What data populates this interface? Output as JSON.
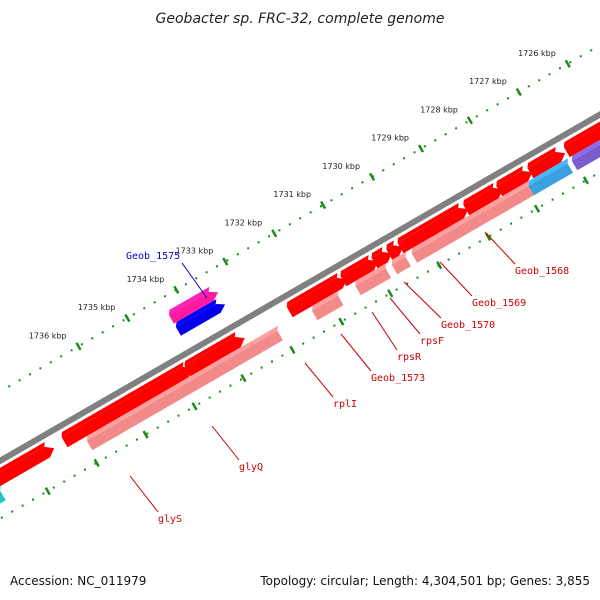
{
  "title": "Geobacter sp. FRC-32, complete genome",
  "footer": {
    "accession": "Accession: NC_011979",
    "summary": "Topology: circular; Length: 4,304,501 bp; Genes: 3,855"
  },
  "colors": {
    "forward_gene": "#ff0000",
    "reverse_gene": "#f28a8a",
    "highlight_gene": "#ff1aa0",
    "highlight_reverse": "#0000ee",
    "cyan_track": "#1fc8c8",
    "blue_track": "#3aa0e0",
    "purple_track": "#7a5ccf",
    "backbone": "#808080",
    "ruler_dots": "#1a8a1a",
    "red_label": "#cc0000",
    "blue_label": "#0000cc"
  },
  "chart_data": {
    "type": "genome-map",
    "ticks": [
      "1726 kbp",
      "1727 kbp",
      "1728 kbp",
      "1729 kbp",
      "1730 kbp",
      "1731 kbp",
      "1732 kbp",
      "1733 kbp",
      "1734 kbp",
      "1735 kbp",
      "1736 kbp"
    ],
    "gene_labels": [
      {
        "name": "Geob_1568",
        "color": "red"
      },
      {
        "name": "Geob_1569",
        "color": "red"
      },
      {
        "name": "Geob_1570",
        "color": "red"
      },
      {
        "name": "rpsF",
        "color": "red"
      },
      {
        "name": "rpsR",
        "color": "red"
      },
      {
        "name": "Geob_1573",
        "color": "red"
      },
      {
        "name": "rplI",
        "color": "red"
      },
      {
        "name": "glyQ",
        "color": "red"
      },
      {
        "name": "glyS",
        "color": "red"
      },
      {
        "name": "Geob_1575",
        "color": "blue"
      }
    ]
  }
}
